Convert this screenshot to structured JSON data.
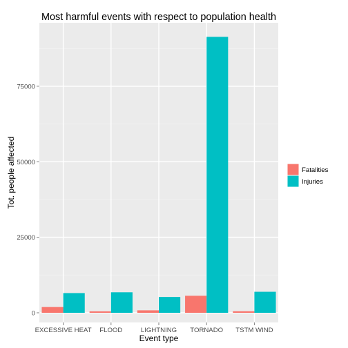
{
  "chart_data": {
    "type": "bar",
    "title": "Most harmful events with respect to population health",
    "xlabel": "Event type",
    "ylabel": "Tot. people affected",
    "categories": [
      "EXCESSIVE HEAT",
      "FLOOD",
      "LIGHTNING",
      "TORNADO",
      "TSTM WIND"
    ],
    "series": [
      {
        "name": "Fatalities",
        "color": "#F8766D",
        "values": [
          1903,
          470,
          816,
          5633,
          504
        ]
      },
      {
        "name": "Injuries",
        "color": "#00BFC4",
        "values": [
          6525,
          6789,
          5230,
          91346,
          6957
        ]
      }
    ],
    "ylim": [
      -3200,
      96000
    ],
    "yticks": [
      0,
      25000,
      50000,
      75000
    ],
    "grid": true,
    "legend_position": "right"
  }
}
